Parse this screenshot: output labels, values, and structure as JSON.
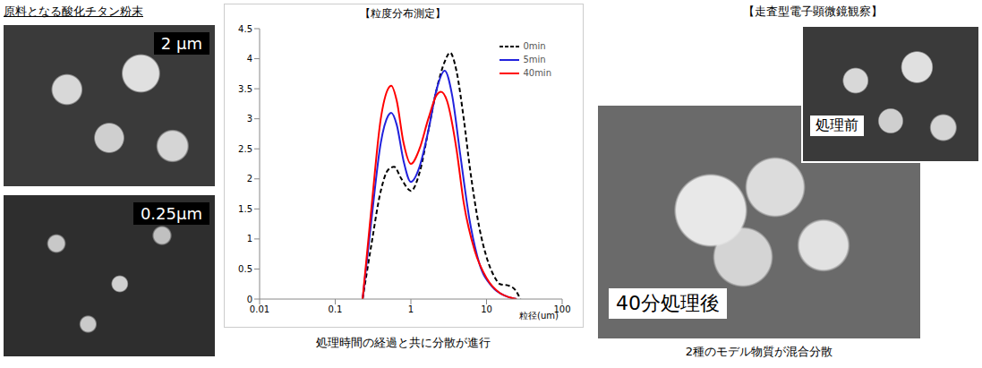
{
  "left_panel": {
    "title": "原料となる酸化チタン粉末",
    "images": [
      {
        "label": "2 μm"
      },
      {
        "label": "0.25μm"
      }
    ]
  },
  "chart_data": {
    "type": "line",
    "title": "【粒度分布測定】",
    "x_label": "粒径(um)",
    "caption": "処理時間の経過と共に分散が進行",
    "log": "x",
    "grid": false,
    "legend": "upper right",
    "xlim": [
      0.01,
      100
    ],
    "xticks": [
      0.01,
      0.1,
      1,
      10,
      100
    ],
    "ylim": [
      0,
      4.5
    ],
    "yticks": [
      0,
      0.5,
      1,
      1.5,
      2,
      2.5,
      3,
      3.5,
      4,
      4.5
    ],
    "series": [
      {
        "name": "0min",
        "color": "#000000",
        "line_style": "dashed",
        "x": [
          0.23,
          0.3,
          0.4,
          0.5,
          0.6,
          0.75,
          1.0,
          1.3,
          1.7,
          2.2,
          2.8,
          3.3,
          4,
          5,
          6,
          8,
          10,
          13,
          15,
          20,
          24,
          28
        ],
        "values": [
          0,
          0.9,
          1.8,
          2.15,
          2.2,
          2.0,
          1.8,
          2.1,
          2.8,
          3.5,
          3.95,
          4.1,
          3.8,
          3.0,
          2.2,
          1.2,
          0.7,
          0.35,
          0.25,
          0.22,
          0.15,
          0
        ]
      },
      {
        "name": "5min",
        "color": "#2222dd",
        "line_style": "solid",
        "x": [
          0.23,
          0.3,
          0.4,
          0.5,
          0.55,
          0.65,
          0.8,
          1.0,
          1.3,
          1.7,
          2.2,
          2.8,
          3.5,
          4.5,
          6,
          8,
          12,
          18,
          25
        ],
        "values": [
          0,
          1.3,
          2.6,
          3.05,
          3.1,
          2.9,
          2.3,
          1.95,
          2.2,
          2.8,
          3.5,
          3.8,
          3.4,
          2.4,
          1.3,
          0.6,
          0.2,
          0.05,
          0
        ]
      },
      {
        "name": "40min",
        "color": "#ff0000",
        "line_style": "solid",
        "x": [
          0.23,
          0.3,
          0.4,
          0.5,
          0.55,
          0.65,
          0.8,
          1.0,
          1.3,
          1.7,
          2.2,
          2.5,
          3.0,
          4,
          5,
          7,
          10,
          15,
          20,
          25
        ],
        "values": [
          0,
          1.5,
          3.0,
          3.5,
          3.55,
          3.3,
          2.6,
          2.25,
          2.5,
          3.0,
          3.4,
          3.45,
          3.3,
          2.5,
          1.6,
          0.8,
          0.35,
          0.1,
          0.03,
          0
        ]
      }
    ]
  },
  "right_panel": {
    "title": "【走査型電子顕微鏡観察】",
    "main_image": {
      "label": "40分処理後"
    },
    "inset_image": {
      "label": "処理前"
    },
    "caption": "2種のモデル物質が混合分散"
  }
}
